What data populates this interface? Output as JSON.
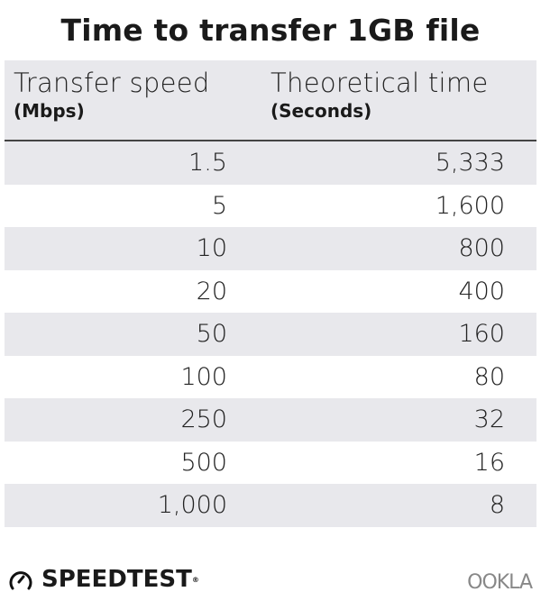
{
  "chart_data": {
    "type": "table",
    "title": "Time to transfer 1GB file",
    "columns": [
      {
        "label": "Transfer speed",
        "unit": "(Mbps)"
      },
      {
        "label": "Theoretical time",
        "unit": "(Seconds)"
      }
    ],
    "rows": [
      [
        "1.5",
        "5,333"
      ],
      [
        "5",
        "1,600"
      ],
      [
        "10",
        "800"
      ],
      [
        "20",
        "400"
      ],
      [
        "50",
        "160"
      ],
      [
        "100",
        "80"
      ],
      [
        "250",
        "32"
      ],
      [
        "500",
        "16"
      ],
      [
        "1,000",
        "8"
      ]
    ],
    "stripe_color": "#e8e8ec"
  },
  "footer": {
    "brand_left": "SPEEDTEST",
    "brand_right": "OOKLA"
  }
}
